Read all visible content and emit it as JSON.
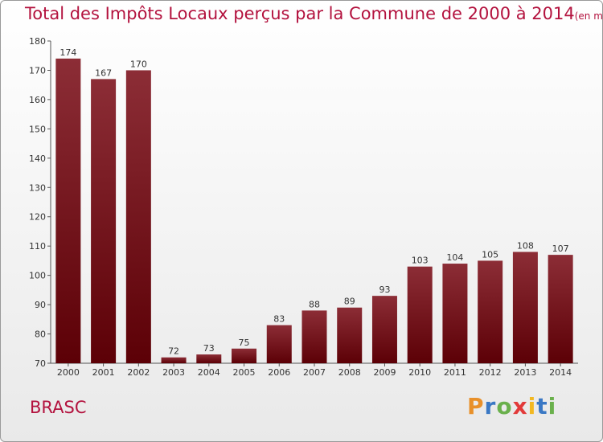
{
  "title": "Total des Impôts Locaux perçus par la Commune de 2000 à 2014",
  "title_unit": "(en milliers d'€)",
  "commune": "BRASC",
  "logo": {
    "letters": [
      "P",
      "r",
      "o",
      "x",
      "i",
      "t",
      "i"
    ],
    "colors": [
      "#e8902a",
      "#3a78c4",
      "#6ab04c",
      "#e23a3a",
      "#f2b822",
      "#3a78c4",
      "#6ab04c"
    ]
  },
  "colors": {
    "bar_top": "#8c2d36",
    "bar_bottom": "#5c0006",
    "title": "#b3123e"
  },
  "chart_data": {
    "type": "bar",
    "categories": [
      "2000",
      "2001",
      "2002",
      "2003",
      "2004",
      "2005",
      "2006",
      "2007",
      "2008",
      "2009",
      "2010",
      "2011",
      "2012",
      "2013",
      "2014"
    ],
    "values": [
      174,
      167,
      170,
      72,
      73,
      75,
      83,
      88,
      89,
      93,
      103,
      104,
      105,
      108,
      107
    ],
    "ylim": [
      70,
      180
    ],
    "yticks": [
      70,
      80,
      90,
      100,
      110,
      120,
      130,
      140,
      150,
      160,
      170,
      180
    ],
    "grid": false,
    "legend": "none"
  }
}
